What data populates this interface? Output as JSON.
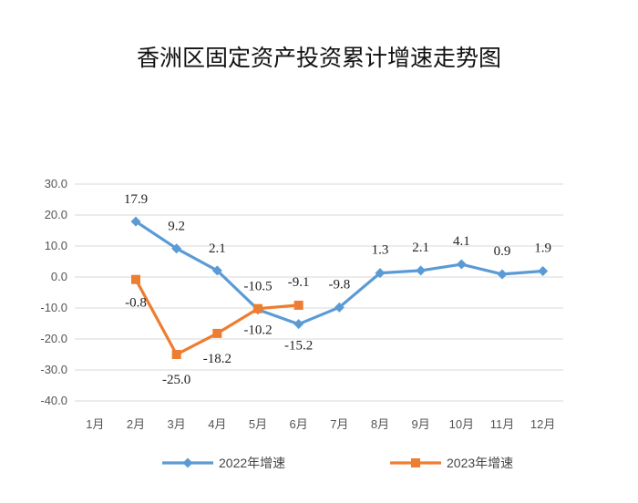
{
  "chart_data": {
    "type": "line",
    "title": "香洲区固定资产投资累计增速走势图",
    "xlabel": "",
    "ylabel": "",
    "categories": [
      "1月",
      "2月",
      "3月",
      "4月",
      "5月",
      "6月",
      "7月",
      "8月",
      "9月",
      "10月",
      "11月",
      "12月"
    ],
    "y_ticks": [
      "30.0",
      "20.0",
      "10.0",
      "0.0",
      "-10.0",
      "-20.0",
      "-30.0",
      "-40.0"
    ],
    "ylim": [
      -40,
      30
    ],
    "grid": true,
    "legend_position": "bottom",
    "series": [
      {
        "name": "2022年增速",
        "color": "#5b9bd5",
        "marker": "diamond",
        "values": [
          null,
          17.9,
          9.2,
          2.1,
          -10.5,
          -15.2,
          -9.8,
          1.3,
          2.1,
          4.1,
          0.9,
          1.9
        ],
        "labels": [
          "",
          "17.9",
          "9.2",
          "2.1",
          "-10.5",
          "-15.2",
          "-9.8",
          "1.3",
          "2.1",
          "4.1",
          "0.9",
          "1.9"
        ]
      },
      {
        "name": "2023年增速",
        "color": "#ed7d31",
        "marker": "square",
        "values": [
          null,
          -0.8,
          -25.0,
          -18.2,
          -10.2,
          -9.1,
          null,
          null,
          null,
          null,
          null,
          null
        ],
        "labels": [
          "",
          "-0.8",
          "-25.0",
          "-18.2",
          "-10.2",
          "-9.1",
          "",
          "",
          "",
          "",
          "",
          ""
        ]
      }
    ]
  }
}
